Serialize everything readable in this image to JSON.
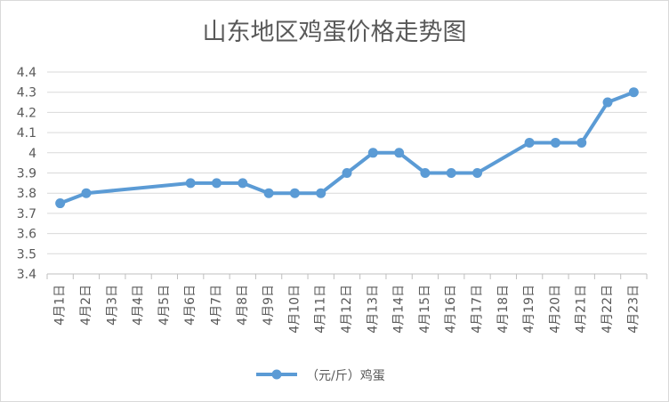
{
  "chart_data": {
    "type": "line",
    "title": "山东地区鸡蛋价格走势图",
    "xlabel": "",
    "ylabel": "",
    "ylim": [
      3.4,
      4.4
    ],
    "yticks": [
      "3.4",
      "3.5",
      "3.6",
      "3.7",
      "3.8",
      "3.9",
      "4",
      "4.1",
      "4.2",
      "4.3",
      "4.4"
    ],
    "categories": [
      "4月1日",
      "4月2日",
      "4月3日",
      "4月4日",
      "4月5日",
      "4月6日",
      "4月7日",
      "4月8日",
      "4月9日",
      "4月10日",
      "4月11日",
      "4月12日",
      "4月13日",
      "4月14日",
      "4月15日",
      "4月16日",
      "4月17日",
      "4月18日",
      "4月19日",
      "4月20日",
      "4月21日",
      "4月22日",
      "4月23日"
    ],
    "series": [
      {
        "name": "（元/斤）鸡蛋",
        "color": "#5b9bd5",
        "values": [
          3.75,
          3.8,
          null,
          null,
          null,
          3.85,
          3.85,
          3.85,
          3.8,
          3.8,
          3.8,
          3.9,
          4.0,
          4.0,
          3.9,
          3.9,
          3.9,
          null,
          4.05,
          4.05,
          4.05,
          4.25,
          4.3
        ]
      }
    ],
    "grid": true,
    "legend_position": "bottom"
  }
}
